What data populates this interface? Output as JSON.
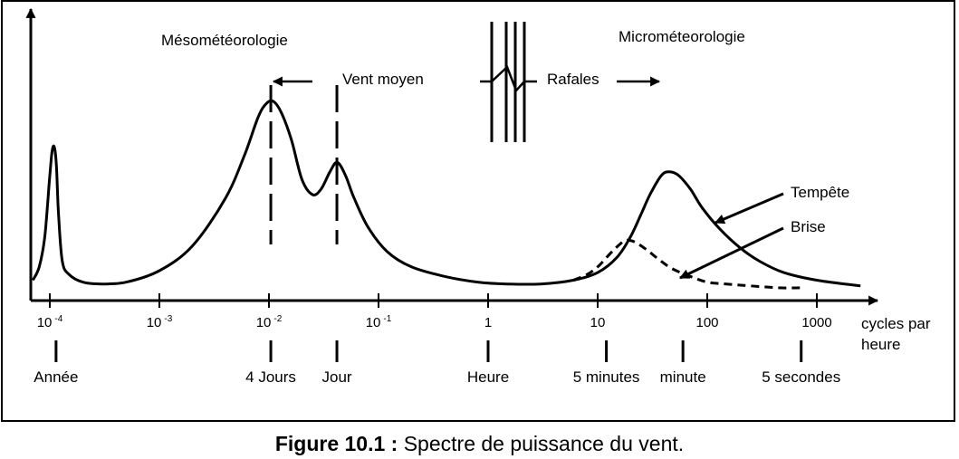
{
  "chart_data": {
    "type": "line",
    "title": "",
    "xlabel": "cycles par heure",
    "ylabel": "",
    "x_scale": "log",
    "xlim": [
      7e-05,
      3000
    ],
    "grid": false,
    "x_ticks": [
      {
        "label": "10",
        "exp": "-4"
      },
      {
        "label": "10",
        "exp": "-3"
      },
      {
        "label": "10",
        "exp": "-2"
      },
      {
        "label": "10",
        "exp": "-1"
      },
      {
        "label": "1",
        "exp": ""
      },
      {
        "label": "10",
        "exp": ""
      },
      {
        "label": "100",
        "exp": ""
      },
      {
        "label": "1000",
        "exp": ""
      }
    ],
    "xlabel_lines": [
      "cycles par",
      "heure"
    ],
    "period_markers": [
      {
        "label": "Année",
        "x": 0.000114
      },
      {
        "label": "4 Jours",
        "x": 0.0104
      },
      {
        "label": "Jour",
        "x": 0.0417
      },
      {
        "label": "Heure",
        "x": 1
      },
      {
        "label": "5 minutes",
        "x": 12
      },
      {
        "label": "minute",
        "x": 60
      },
      {
        "label": "5 secondes",
        "x": 720
      }
    ],
    "region_labels": [
      "Mésométéorologie",
      "Microméteorologie"
    ],
    "arrow_labels": [
      "Vent moyen",
      "Rafales"
    ],
    "series": [
      {
        "name": "Tempête",
        "style": "solid",
        "x": [
          7e-05,
          8e-05,
          9e-05,
          0.0001,
          0.000105,
          0.00011,
          0.000115,
          0.00012,
          0.00013,
          0.00015,
          0.0002,
          0.0003,
          0.0005,
          0.001,
          0.002,
          0.004,
          0.006,
          0.008,
          0.0095,
          0.011,
          0.013,
          0.016,
          0.02,
          0.025,
          0.03,
          0.036,
          0.042,
          0.05,
          0.06,
          0.08,
          0.12,
          0.2,
          0.4,
          0.8,
          1.5,
          3,
          6,
          10,
          15,
          20,
          25,
          30,
          38,
          45,
          55,
          70,
          90,
          130,
          200,
          300,
          500,
          1000,
          2500
        ],
        "y": [
          0.05,
          0.12,
          0.28,
          0.6,
          0.73,
          0.75,
          0.65,
          0.4,
          0.15,
          0.08,
          0.04,
          0.03,
          0.04,
          0.1,
          0.23,
          0.48,
          0.71,
          0.91,
          0.98,
          0.99,
          0.93,
          0.79,
          0.58,
          0.5,
          0.53,
          0.62,
          0.67,
          0.6,
          0.48,
          0.33,
          0.2,
          0.12,
          0.07,
          0.04,
          0.03,
          0.03,
          0.05,
          0.09,
          0.17,
          0.28,
          0.4,
          0.5,
          0.6,
          0.62,
          0.6,
          0.53,
          0.43,
          0.32,
          0.22,
          0.15,
          0.09,
          0.05,
          0.02
        ]
      },
      {
        "name": "Brise",
        "style": "dashed",
        "x": [
          6,
          8,
          10,
          13,
          16,
          18,
          22,
          28,
          36,
          48,
          70,
          100,
          150,
          250,
          450,
          700
        ],
        "y": [
          0.05,
          0.08,
          0.12,
          0.19,
          0.24,
          0.26,
          0.25,
          0.21,
          0.16,
          0.11,
          0.07,
          0.04,
          0.03,
          0.02,
          0.01,
          0.01
        ]
      }
    ]
  },
  "caption": {
    "lead": "Figure 10.1 :",
    "text": " Spectre de puissance du vent."
  }
}
